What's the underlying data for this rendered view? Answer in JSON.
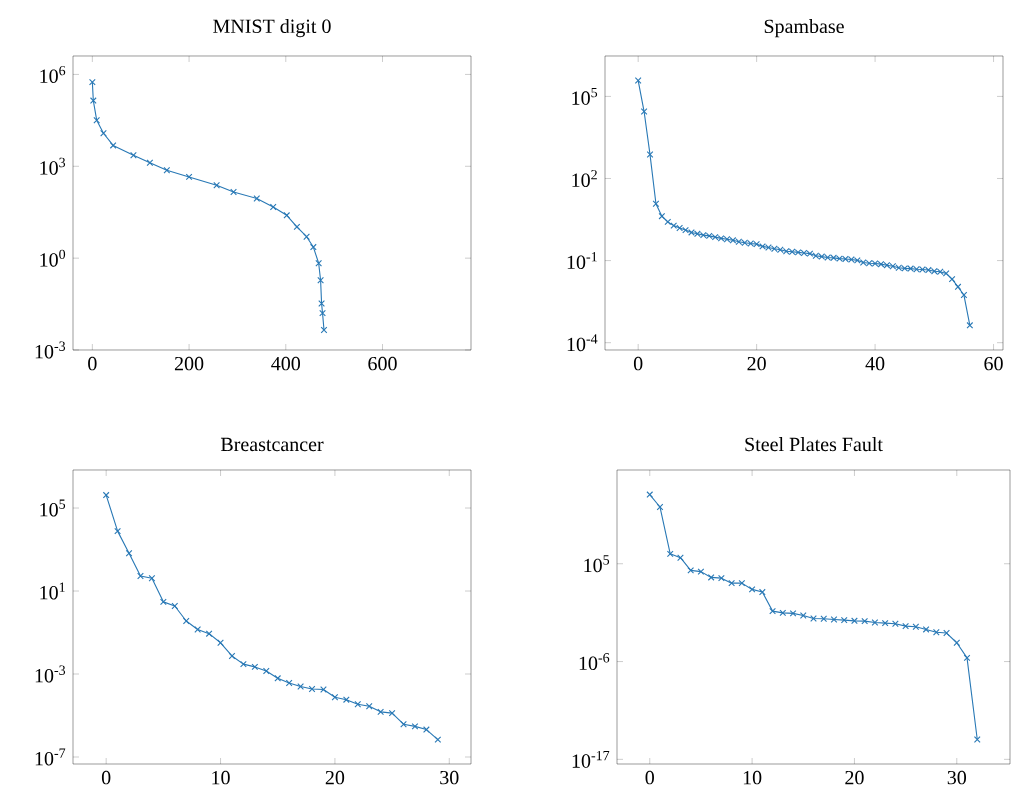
{
  "chart_data": [
    {
      "type": "line",
      "title": "MNIST digit 0",
      "log": "y",
      "marker": "cross",
      "line_style": "solid",
      "color": "#2878b5",
      "x": [
        0,
        2,
        9,
        23,
        43,
        85,
        119,
        154,
        200,
        257,
        292,
        340,
        374,
        402,
        423,
        443,
        457,
        468,
        472,
        474,
        476,
        479
      ],
      "values": [
        560000,
        140000,
        32000,
        12000,
        4800,
        2300,
        1300,
        740,
        450,
        240,
        145,
        89,
        47,
        25,
        10.5,
        5,
        2.3,
        0.68,
        0.19,
        0.033,
        0.016,
        0.0045
      ],
      "xlim": [
        -40,
        783
      ],
      "ylim": [
        0.001,
        4000000
      ],
      "xticks": [
        0,
        200,
        400,
        600
      ],
      "yticks": [
        {
          "value": 0.001,
          "label": "10$^{-3}$"
        },
        {
          "value": 1,
          "label": "10$^{0}$"
        },
        {
          "value": 1000,
          "label": "10$^{3}$"
        },
        {
          "value": 1000000,
          "label": "10$^{6}$"
        }
      ]
    },
    {
      "type": "line",
      "title": "Spambase",
      "log": "y",
      "marker": "cross",
      "line_style": "solid",
      "color": "#2878b5",
      "x": [
        0,
        1,
        2,
        3,
        4,
        5,
        6,
        7,
        8,
        9,
        10,
        11,
        12,
        13,
        14,
        15,
        16,
        17,
        18,
        19,
        20,
        21,
        22,
        23,
        24,
        25,
        26,
        27,
        28,
        29,
        30,
        31,
        32,
        33,
        34,
        35,
        36,
        37,
        38,
        39,
        40,
        41,
        42,
        43,
        44,
        45,
        46,
        47,
        48,
        49,
        50,
        51,
        52,
        53,
        54,
        55,
        56
      ],
      "values": [
        380000,
        28000,
        750,
        12,
        4.2,
        2.6,
        1.9,
        1.55,
        1.3,
        1.07,
        0.95,
        0.85,
        0.8,
        0.72,
        0.65,
        0.6,
        0.55,
        0.49,
        0.45,
        0.42,
        0.4,
        0.33,
        0.3,
        0.27,
        0.25,
        0.22,
        0.21,
        0.2,
        0.19,
        0.18,
        0.15,
        0.14,
        0.13,
        0.126,
        0.118,
        0.115,
        0.11,
        0.102,
        0.085,
        0.08,
        0.078,
        0.074,
        0.068,
        0.062,
        0.055,
        0.052,
        0.051,
        0.048,
        0.047,
        0.045,
        0.041,
        0.039,
        0.034,
        0.021,
        0.011,
        0.0055,
        0.00043
      ],
      "xlim": [
        -5.6,
        61.6
      ],
      "ylim": [
        5.4e-05,
        3000000
      ],
      "xticks": [
        0,
        20,
        40,
        60
      ],
      "yticks": [
        {
          "value": 0.0001,
          "label": "10$^{-4}$"
        },
        {
          "value": 0.1,
          "label": "10$^{-1}$"
        },
        {
          "value": 100,
          "label": "10$^{2}$"
        },
        {
          "value": 100000,
          "label": "10$^{5}$"
        }
      ]
    },
    {
      "type": "line",
      "title": "Breastcancer",
      "log": "y",
      "marker": "cross",
      "line_style": "solid",
      "color": "#2878b5",
      "x": [
        0,
        1,
        2,
        3,
        4,
        5,
        6,
        7,
        8,
        9,
        10,
        11,
        12,
        13,
        14,
        15,
        16,
        17,
        18,
        19,
        20,
        21,
        22,
        23,
        24,
        25,
        26,
        27,
        28,
        29
      ],
      "values": [
        420000,
        7700,
        660,
        53,
        41,
        3.0,
        1.9,
        0.36,
        0.14,
        0.088,
        0.032,
        0.0074,
        0.003,
        0.0022,
        0.0014,
        0.00062,
        0.00037,
        0.00025,
        0.00019,
        0.00018,
        7.6e-05,
        5.8e-05,
        3.5e-05,
        2.8e-05,
        1.5e-05,
        1.3e-05,
        3.8e-06,
        3e-06,
        2.1e-06,
        6.9e-07
      ],
      "xlim": [
        -2.9,
        31.9
      ],
      "ylim": [
        4.6e-08,
        6800000
      ],
      "xticks": [
        0,
        10,
        20,
        30
      ],
      "yticks": [
        {
          "value": 1e-07,
          "label": "10$^{-7}$"
        },
        {
          "value": 0.001,
          "label": "10$^{-3}$"
        },
        {
          "value": 10,
          "label": "10$^{1}$"
        },
        {
          "value": 100000,
          "label": "10$^{5}$"
        }
      ]
    },
    {
      "type": "line",
      "title": "Steel Plates Fault",
      "log": "y",
      "marker": "cross",
      "line_style": "solid",
      "color": "#2878b5",
      "x": [
        0,
        1,
        2,
        3,
        4,
        5,
        6,
        7,
        8,
        9,
        10,
        11,
        12,
        13,
        14,
        15,
        16,
        17,
        18,
        19,
        20,
        21,
        22,
        23,
        24,
        25,
        26,
        27,
        28,
        29,
        30,
        31,
        32
      ],
      "values": [
        6000000000000.0,
        240000000000.0,
        1300000.0,
        480000,
        18000,
        13000,
        2900,
        2400,
        660,
        660,
        130,
        65,
        0.47,
        0.3,
        0.26,
        0.15,
        0.07,
        0.065,
        0.054,
        0.046,
        0.038,
        0.035,
        0.025,
        0.021,
        0.018,
        0.0096,
        0.0081,
        0.0041,
        0.002,
        0.0016,
        0.00013,
        2.6e-06,
        1.7e-15
      ],
      "xlim": [
        -3.2,
        35.2
      ],
      "ylim": [
        3e-18,
        3500000000000000.0
      ],
      "xticks": [
        0,
        10,
        20,
        30
      ],
      "yticks": [
        {
          "value": 1e-17,
          "label": "10$^{-17}$"
        },
        {
          "value": 1e-06,
          "label": "10$^{-6}$"
        },
        {
          "value": 100000,
          "label": "10$^{5}$"
        }
      ]
    }
  ]
}
